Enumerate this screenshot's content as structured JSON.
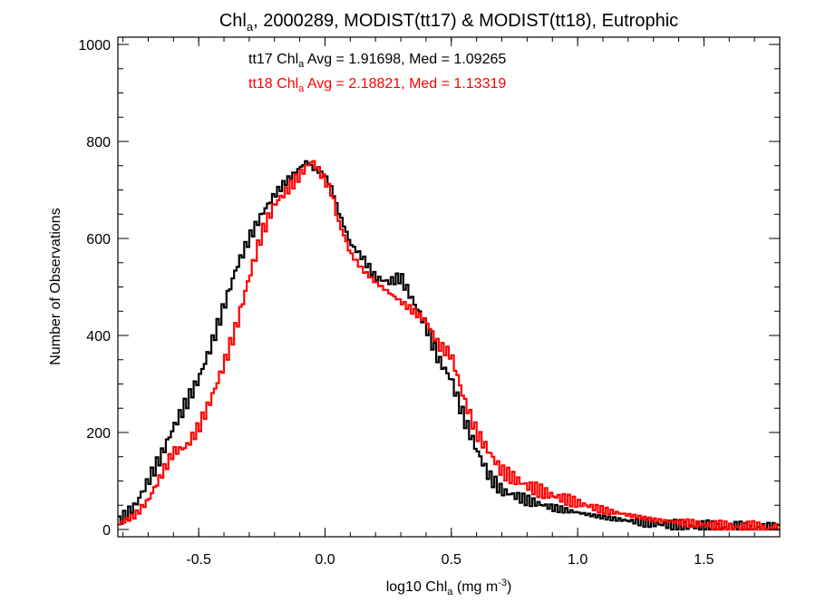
{
  "chart_data": {
    "type": "line",
    "title": {
      "pre": "Chl",
      "sub": "a",
      "post": ", 2000289, MODIST(tt17) & MODIST(tt18), Eutrophic"
    },
    "xlabel": {
      "pre": "log10 Chl",
      "sub": "a",
      "mid": " (mg m",
      "sup": "-3",
      "post": ")"
    },
    "ylabel": "Number of Observations",
    "xlim": [
      -0.82,
      1.8
    ],
    "ylim": [
      -15,
      1015
    ],
    "xticks": [
      {
        "value": -0.5,
        "label": "-0.5"
      },
      {
        "value": 0.0,
        "label": "0.0"
      },
      {
        "value": 0.5,
        "label": "0.5"
      },
      {
        "value": 1.0,
        "label": "1.0"
      },
      {
        "value": 1.5,
        "label": "1.5"
      }
    ],
    "yticks": [
      {
        "value": 0,
        "label": "0"
      },
      {
        "value": 200,
        "label": "200"
      },
      {
        "value": 400,
        "label": "400"
      },
      {
        "value": 600,
        "label": "600"
      },
      {
        "value": 800,
        "label": "800"
      },
      {
        "value": 1000,
        "label": "1000"
      }
    ],
    "minor_x_step": 0.1,
    "minor_y_step": 50,
    "grid": false,
    "annotations": [
      {
        "prefix": "tt17 Chl",
        "sub": "a",
        "suffix": " Avg = 1.91698, Med = 1.09265",
        "color": "#000000"
      },
      {
        "prefix": "tt18 Chl",
        "sub": "a",
        "suffix": " Avg = 2.18821, Med = 1.13319",
        "color": "#ff0000"
      }
    ],
    "bin_width": 0.01,
    "series": [
      {
        "color": "#000000",
        "x": [
          -0.82,
          -0.75,
          -0.7,
          -0.65,
          -0.6,
          -0.55,
          -0.5,
          -0.45,
          -0.4,
          -0.35,
          -0.3,
          -0.25,
          -0.2,
          -0.15,
          -0.1,
          -0.07,
          -0.05,
          -0.03,
          0.0,
          0.03,
          0.05,
          0.08,
          0.1,
          0.15,
          0.2,
          0.25,
          0.3,
          0.35,
          0.4,
          0.45,
          0.5,
          0.55,
          0.6,
          0.65,
          0.7,
          0.8,
          0.9,
          1.0,
          1.1,
          1.2,
          1.3,
          1.4,
          1.5,
          1.6,
          1.7,
          1.8
        ],
        "y": [
          15,
          50,
          100,
          150,
          210,
          260,
          310,
          380,
          460,
          540,
          600,
          650,
          690,
          720,
          745,
          760,
          745,
          740,
          730,
          700,
          660,
          620,
          590,
          560,
          520,
          510,
          520,
          470,
          420,
          350,
          310,
          230,
          165,
          110,
          80,
          60,
          45,
          35,
          25,
          18,
          12,
          8,
          5,
          2,
          1,
          0
        ]
      },
      {
        "color": "#ff0000",
        "x": [
          -0.82,
          -0.75,
          -0.7,
          -0.65,
          -0.6,
          -0.55,
          -0.5,
          -0.45,
          -0.4,
          -0.35,
          -0.3,
          -0.25,
          -0.2,
          -0.15,
          -0.1,
          -0.07,
          -0.05,
          -0.03,
          0.0,
          0.03,
          0.05,
          0.08,
          0.1,
          0.15,
          0.2,
          0.25,
          0.3,
          0.35,
          0.4,
          0.45,
          0.5,
          0.55,
          0.6,
          0.65,
          0.7,
          0.8,
          0.9,
          1.0,
          1.1,
          1.2,
          1.3,
          1.4,
          1.5,
          1.6,
          1.7,
          1.8
        ],
        "y": [
          10,
          30,
          60,
          110,
          160,
          170,
          210,
          270,
          340,
          420,
          520,
          610,
          670,
          700,
          730,
          750,
          760,
          745,
          720,
          690,
          640,
          600,
          570,
          535,
          510,
          490,
          470,
          450,
          430,
          380,
          360,
          270,
          200,
          160,
          120,
          90,
          70,
          55,
          40,
          30,
          20,
          15,
          10,
          5,
          3,
          0
        ]
      }
    ]
  }
}
